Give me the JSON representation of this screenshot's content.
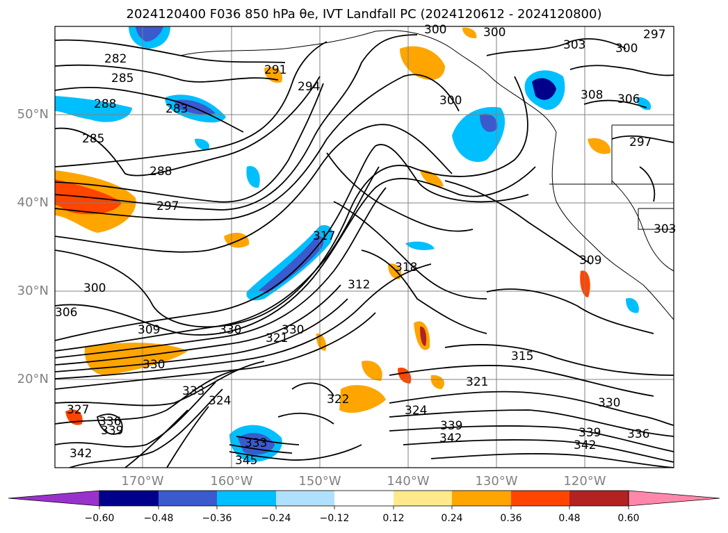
{
  "title": "2024120400 F036 850 hPa θe, IVT Landfall PC (2024120612 - 2024120800)",
  "map": {
    "lat_labels": [
      "50°N",
      "40°N",
      "30°N",
      "20°N"
    ],
    "lon_labels": [
      "170°W",
      "160°W",
      "150°W",
      "140°W",
      "130°W",
      "120°W"
    ],
    "contour_labels": [
      "282",
      "285",
      "288",
      "288",
      "285",
      "283",
      "291",
      "294",
      "297",
      "300",
      "300",
      "300",
      "297",
      "303",
      "300",
      "306",
      "308",
      "309",
      "303",
      "297",
      "309",
      "312",
      "315",
      "317",
      "318",
      "321",
      "321",
      "322",
      "324",
      "324",
      "327",
      "330",
      "330",
      "330",
      "330",
      "333",
      "333",
      "336",
      "336",
      "339",
      "339",
      "339",
      "342",
      "342",
      "342",
      "345",
      "300",
      "306"
    ]
  },
  "colorbar": {
    "colors": [
      "#9932cc",
      "#00008b",
      "#3a5acd",
      "#00bfff",
      "#b0e0ff",
      "#ffffff",
      "#ffe98a",
      "#ffa500",
      "#ff4500",
      "#b22222",
      "#ff88aa"
    ],
    "tick_labels": [
      "−0.60",
      "−0.48",
      "−0.36",
      "−0.24",
      "−0.12",
      "0.12",
      "0.24",
      "0.36",
      "0.48",
      "0.60"
    ]
  }
}
